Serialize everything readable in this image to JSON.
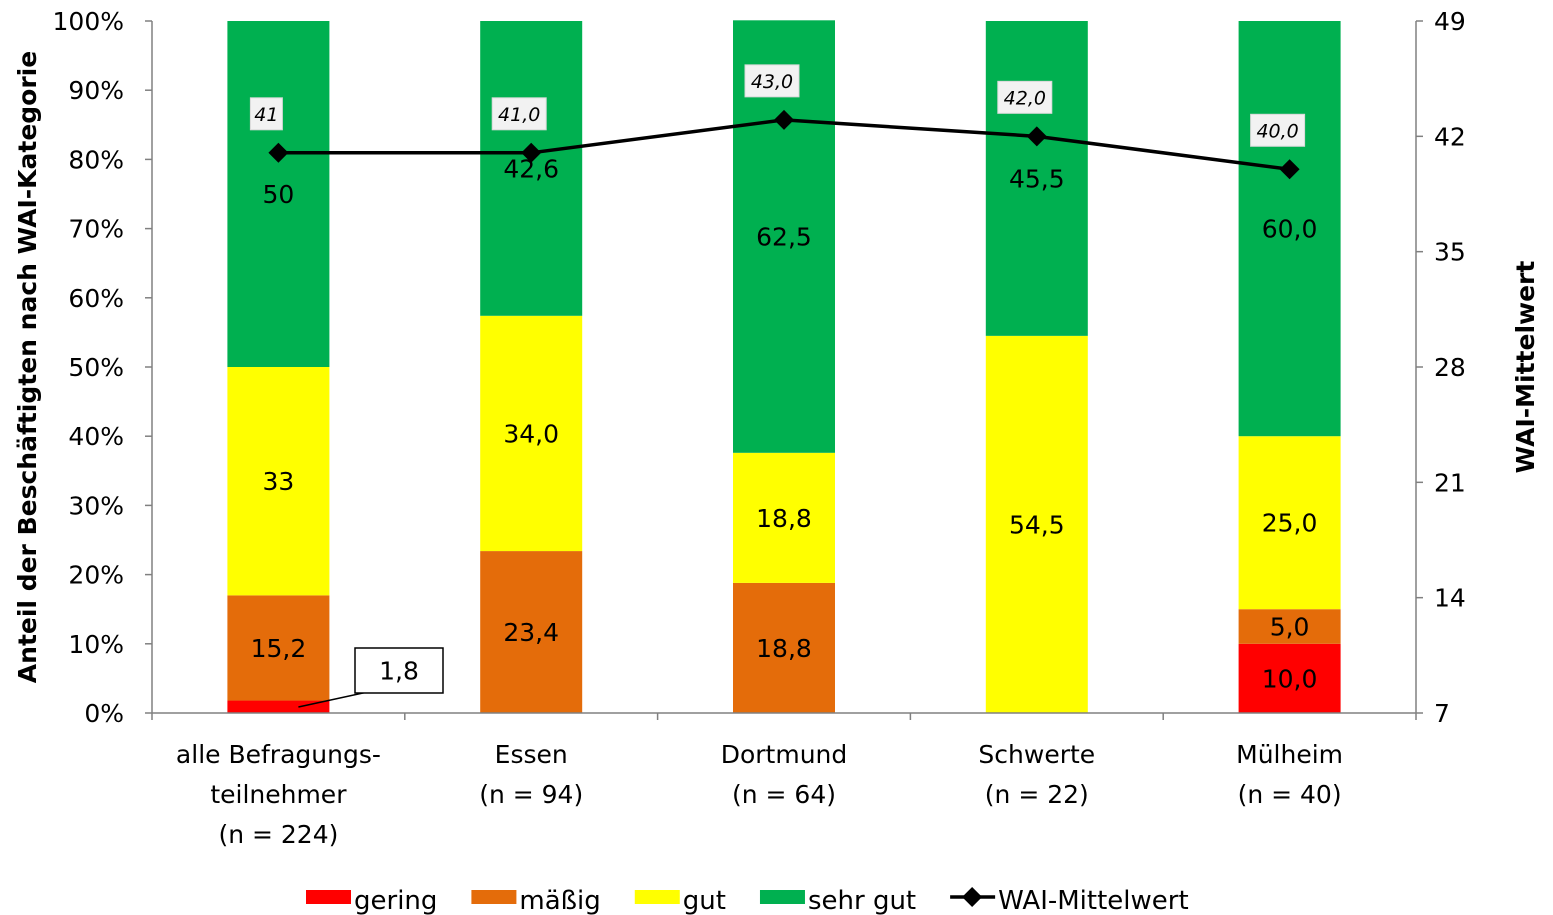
{
  "chart_data": {
    "type": "bar",
    "stacked": true,
    "categories": [
      [
        "alle Befragungs-",
        "teilnehmer",
        "(n = 224)"
      ],
      [
        "Essen",
        "(n = 94)"
      ],
      [
        "Dortmund",
        "(n = 64)"
      ],
      [
        "Schwerte",
        "(n = 22)"
      ],
      [
        "Mülheim",
        "(n = 40)"
      ]
    ],
    "series": [
      {
        "name": "gering",
        "color": "#FF0000",
        "values": [
          1.8,
          0,
          0,
          0,
          10.0
        ],
        "labels": [
          "1,8",
          "",
          "",
          "",
          "10,0"
        ]
      },
      {
        "name": "mäßig",
        "color": "#E46C0A",
        "values": [
          15.2,
          23.4,
          18.8,
          0,
          5.0
        ],
        "labels": [
          "15,2",
          "23,4",
          "18,8",
          "",
          "5,0"
        ]
      },
      {
        "name": "gut",
        "color": "#FFFF00",
        "values": [
          33,
          34.0,
          18.8,
          54.5,
          25.0
        ],
        "labels": [
          "33",
          "34,0",
          "18,8",
          "54,5",
          "25,0"
        ]
      },
      {
        "name": "sehr gut",
        "color": "#00B050",
        "values": [
          50,
          42.6,
          62.5,
          45.5,
          60.0
        ],
        "labels": [
          "50",
          "42,6",
          "62,5",
          "45,5",
          "60,0"
        ]
      }
    ],
    "line_series": {
      "name": "WAI-Mittelwert",
      "color": "#000000",
      "axis": "right",
      "values": [
        41,
        41.0,
        43.0,
        42.0,
        40.0
      ],
      "labels": [
        "41",
        "41,0",
        "43,0",
        "42,0",
        "40,0"
      ]
    },
    "ylabel": "Anteil der Beschäftigten nach WAI-Kategorie",
    "y2label": "WAI-Mittelwert",
    "ylim": [
      0,
      100
    ],
    "y2lim": [
      7,
      49
    ],
    "yticks": [
      "0%",
      "10%",
      "20%",
      "30%",
      "40%",
      "50%",
      "60%",
      "70%",
      "80%",
      "90%",
      "100%"
    ],
    "y2ticks": [
      "7",
      "14",
      "21",
      "28",
      "35",
      "42",
      "49"
    ],
    "y2tick_values": [
      7,
      14,
      21,
      28,
      35,
      42,
      49
    ],
    "callout": {
      "category_index": 0,
      "series": "gering",
      "text": "1,8"
    },
    "legend": {
      "position": "bottom"
    },
    "grid": false
  }
}
